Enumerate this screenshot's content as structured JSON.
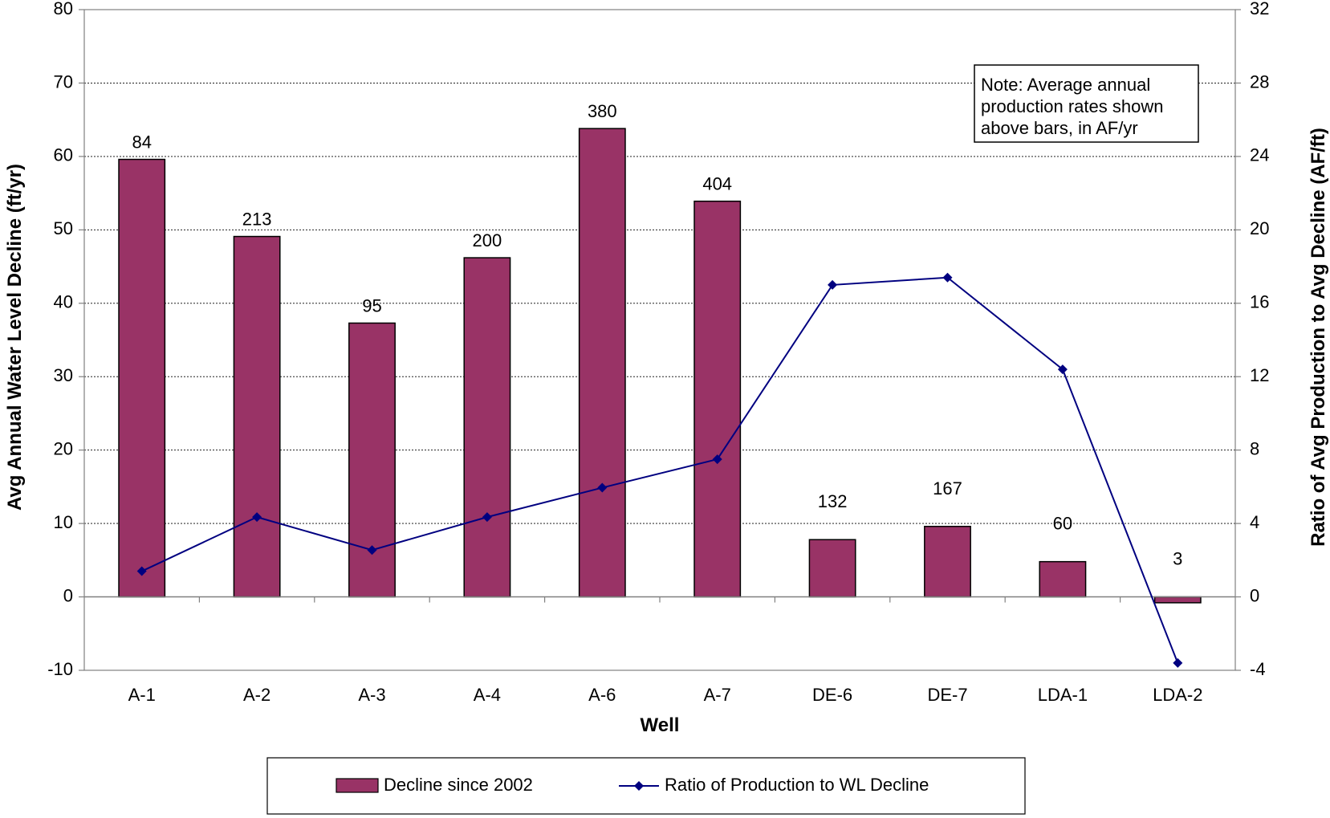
{
  "chart_data": {
    "type": "bar",
    "categories": [
      "A-1",
      "A-2",
      "A-3",
      "A-4",
      "A-6",
      "A-7",
      "DE-6",
      "DE-7",
      "LDA-1",
      "LDA-2"
    ],
    "series": [
      {
        "name": "Decline since 2002",
        "type": "bar",
        "axis": "left",
        "color": "#993366",
        "values": [
          59.6,
          49.1,
          37.3,
          46.2,
          63.8,
          53.9,
          7.8,
          9.6,
          4.8,
          -0.8
        ]
      },
      {
        "name": "Ratio of Production to WL Decline",
        "type": "line",
        "axis": "right",
        "color": "#000080",
        "marker": "diamond",
        "values": [
          1.4,
          4.35,
          2.55,
          4.35,
          5.95,
          7.5,
          17.0,
          17.4,
          12.4,
          -3.6
        ]
      }
    ],
    "bar_labels": [
      "84",
      "213",
      "95",
      "200",
      "380",
      "404",
      "132",
      "167",
      "60",
      "3"
    ],
    "xlabel": "Well",
    "ylabel": "Avg Annual Water Level Decline (ft/yr)",
    "y2label": "Ratio of Avg Production to Avg Decline (AF/ft)",
    "ylim": [
      -10,
      80
    ],
    "y2lim": [
      -4,
      32
    ],
    "yticks": [
      "80",
      "70",
      "60",
      "50",
      "40",
      "30",
      "20",
      "10",
      "0",
      "-10"
    ],
    "y2ticks": [
      "32",
      "28",
      "24",
      "20",
      "16",
      "12",
      "8",
      "4",
      "0",
      "-4"
    ],
    "grid": true,
    "note": [
      "Note: Average annual",
      "production rates shown",
      "above bars, in AF/yr"
    ],
    "legend_position": "bottom"
  }
}
